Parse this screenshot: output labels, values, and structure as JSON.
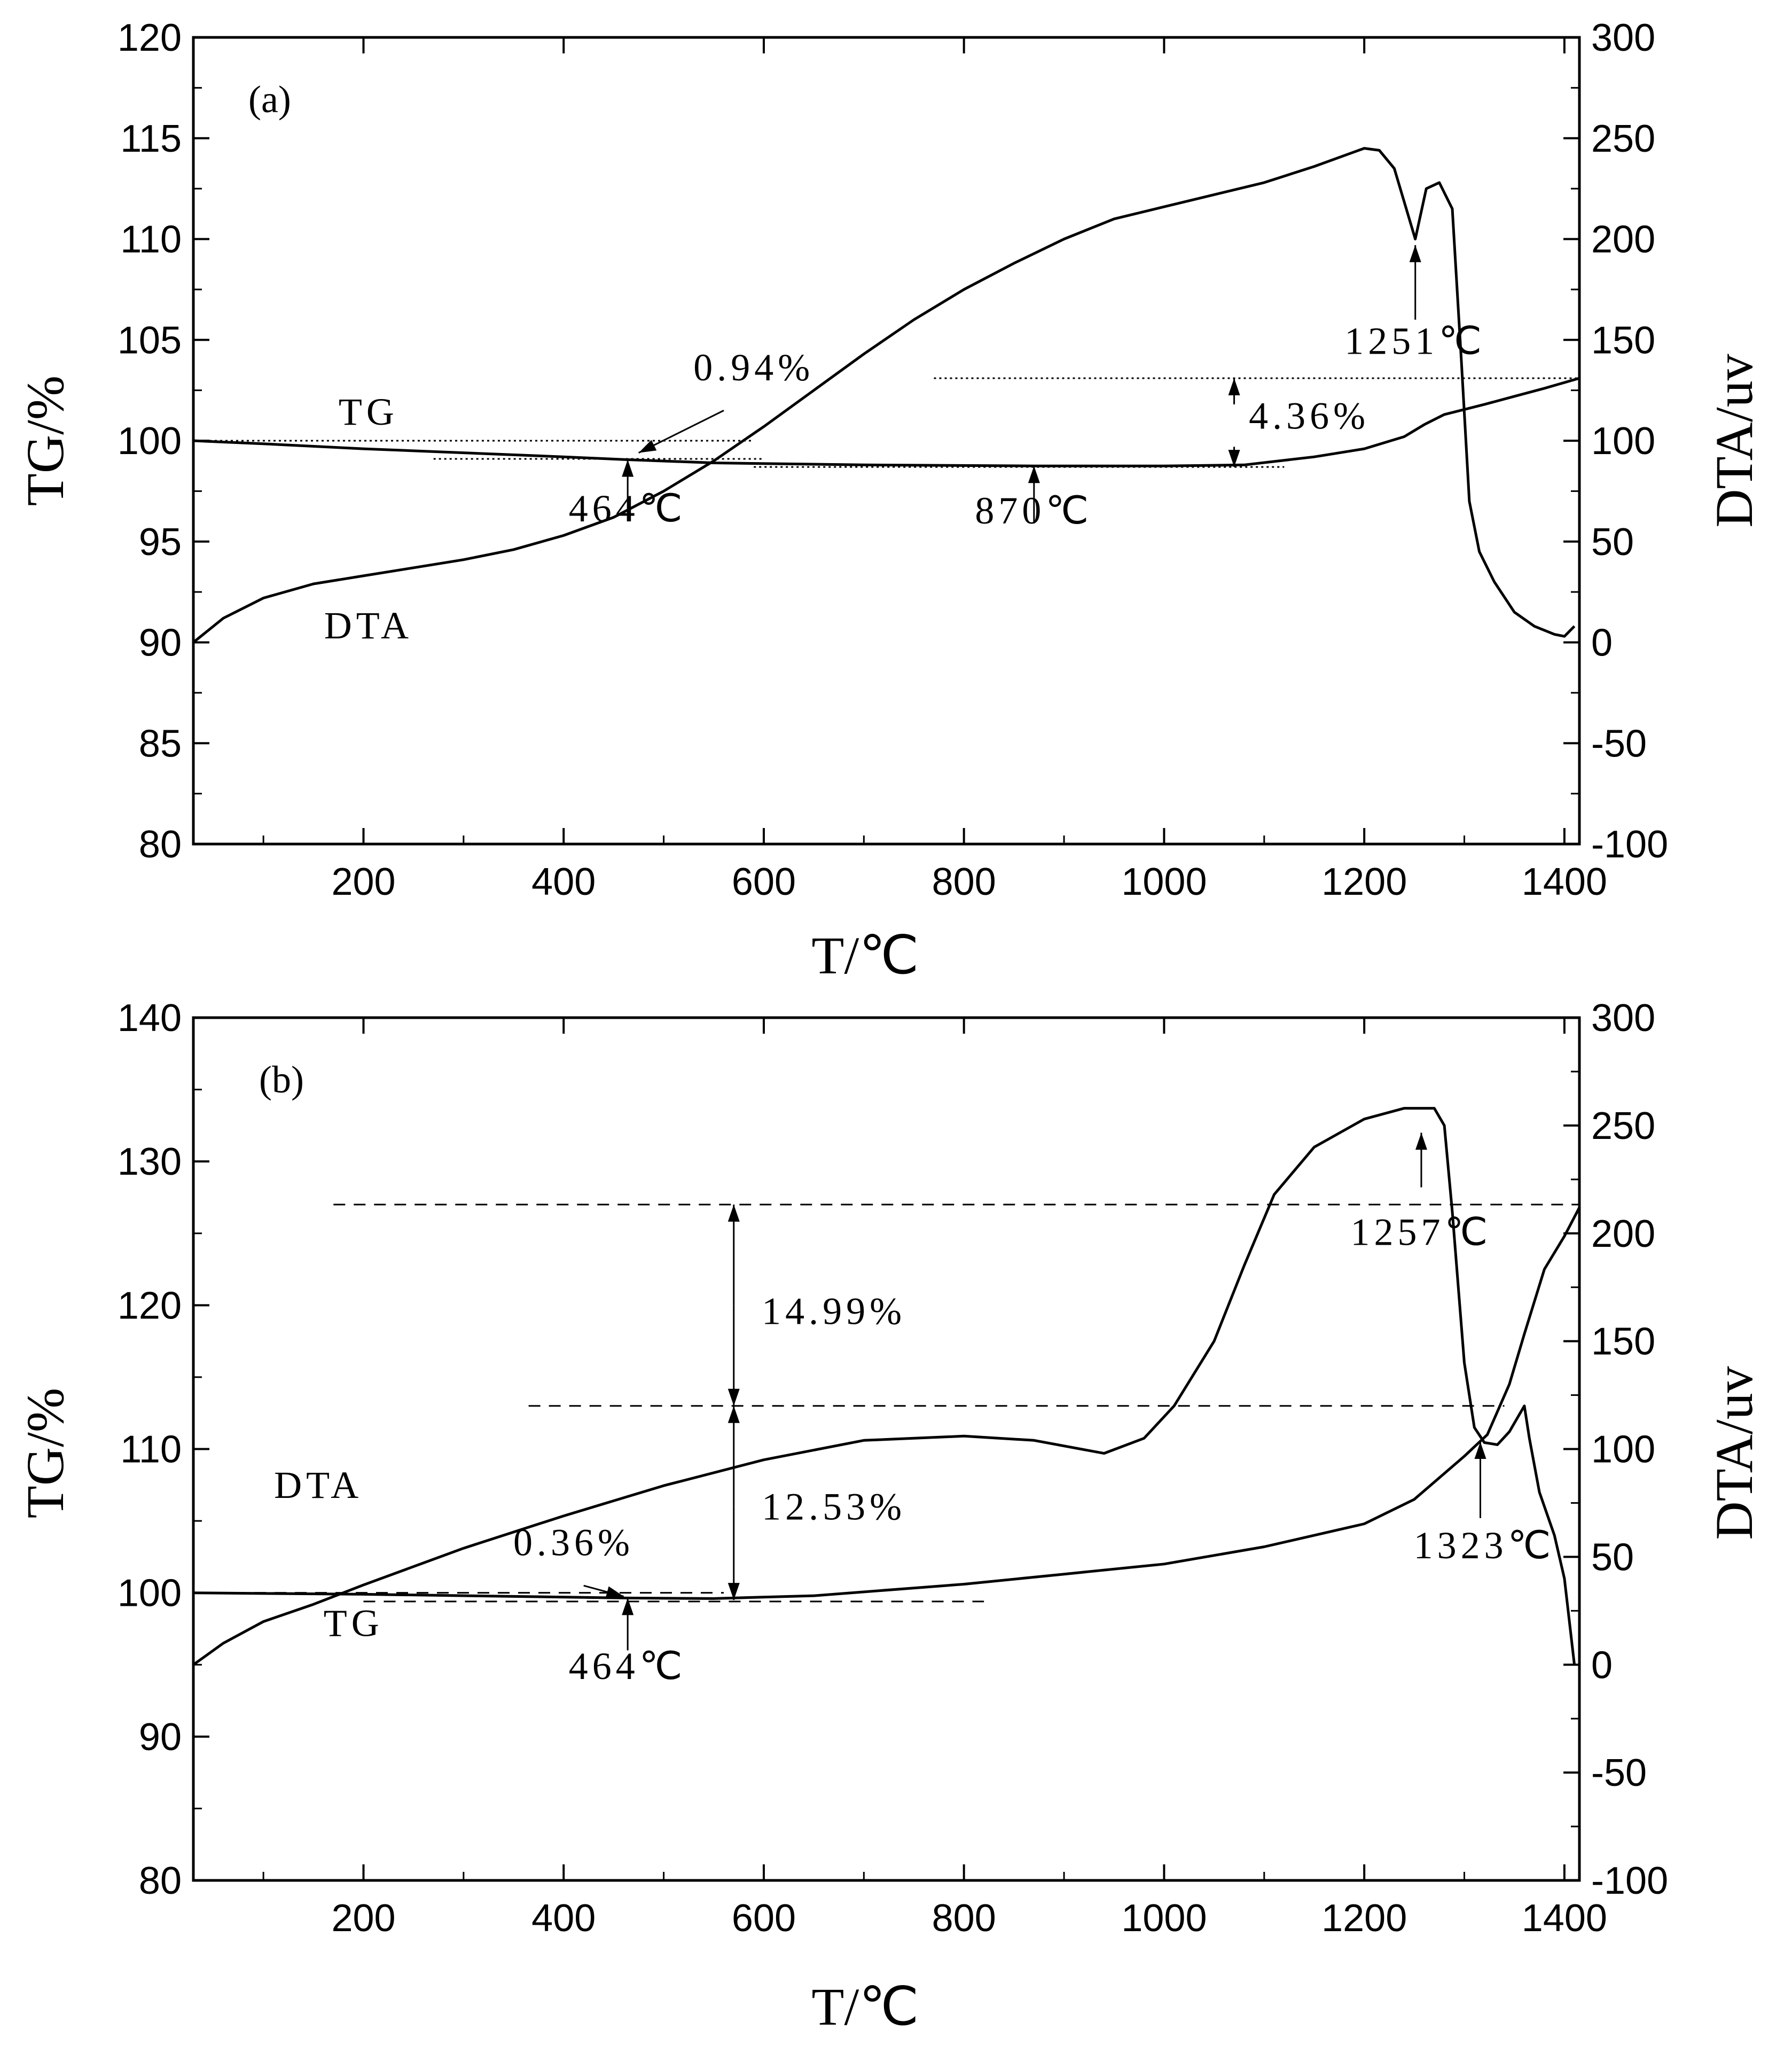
{
  "chart_data": [
    {
      "id": "a",
      "type": "line",
      "panel_label": "(a)",
      "xlabel": "T/℃",
      "ylabel_left": "TG/%",
      "ylabel_right": "DTA/uv",
      "xlim": [
        30,
        1415
      ],
      "xticks": [
        200,
        400,
        600,
        800,
        1000,
        1200,
        1400
      ],
      "ylim_left": [
        80,
        120
      ],
      "yticks_left": [
        80,
        85,
        90,
        95,
        100,
        105,
        110,
        115,
        120
      ],
      "ylim_right": [
        -100,
        300
      ],
      "yticks_right": [
        -100,
        -50,
        0,
        50,
        100,
        150,
        200,
        250,
        300
      ],
      "series": [
        {
          "name": "TG",
          "axis": "left",
          "x": [
            30,
            100,
            200,
            300,
            400,
            464,
            550,
            700,
            870,
            1000,
            1080,
            1150,
            1200,
            1240,
            1260,
            1280,
            1320,
            1350,
            1380,
            1415
          ],
          "y": [
            100.0,
            99.85,
            99.6,
            99.4,
            99.2,
            99.06,
            98.9,
            98.8,
            98.75,
            98.75,
            98.8,
            99.2,
            99.6,
            100.2,
            100.8,
            101.3,
            101.8,
            102.2,
            102.6,
            103.1
          ]
        },
        {
          "name": "DTA",
          "axis": "right",
          "x": [
            30,
            60,
            100,
            150,
            200,
            250,
            300,
            350,
            400,
            450,
            500,
            550,
            600,
            650,
            700,
            750,
            800,
            850,
            900,
            950,
            1000,
            1050,
            1100,
            1150,
            1200,
            1215,
            1230,
            1251,
            1262,
            1275,
            1288,
            1297,
            1305,
            1315,
            1330,
            1350,
            1370,
            1390,
            1400,
            1410
          ],
          "y": [
            0,
            12,
            22,
            29,
            33,
            37,
            41,
            46,
            53,
            62,
            75,
            90,
            107,
            125,
            143,
            160,
            175,
            188,
            200,
            210,
            216,
            222,
            228,
            236,
            245,
            244,
            235,
            200,
            225,
            228,
            215,
            140,
            70,
            45,
            30,
            15,
            8,
            4,
            3,
            8
          ]
        }
      ],
      "annotations": [
        {
          "text": "TG",
          "x": 205,
          "y": 100.8
        },
        {
          "text": "DTA",
          "x": 205,
          "y": 90.2
        },
        {
          "text": "0.94%",
          "x": 590,
          "y": 103.0
        },
        {
          "text": "464℃",
          "x": 464,
          "y": 96.0
        },
        {
          "text": "870℃",
          "x": 870,
          "y": 95.9
        },
        {
          "text": "4.36%",
          "x": 1145,
          "y": 100.6
        },
        {
          "text": "1251℃",
          "x": 1251,
          "y": 104.3
        }
      ],
      "arrows": [
        {
          "from": [
            464,
            96.0
          ],
          "to": [
            464,
            99.06
          ]
        },
        {
          "from": [
            870,
            95.9
          ],
          "to": [
            870,
            98.75
          ]
        },
        {
          "from": [
            1251,
            106.0
          ],
          "to": [
            1251,
            109.7
          ]
        },
        {
          "from": [
            560,
            101.5
          ],
          "to": [
            475,
            99.4
          ]
        },
        {
          "from": [
            1070,
            101.8
          ],
          "to": [
            1070,
            103.1
          ],
          "head": "end"
        },
        {
          "from": [
            1070,
            99.7
          ],
          "to": [
            1070,
            98.7
          ],
          "head": "end"
        }
      ],
      "ref_lines": [
        {
          "x": [
            30,
            590
          ],
          "y": 100.0
        },
        {
          "x": [
            270,
            600
          ],
          "y": 99.1
        },
        {
          "x": [
            590,
            1120
          ],
          "y": 98.7
        },
        {
          "x": [
            770,
            1415
          ],
          "y": 103.1
        }
      ]
    },
    {
      "id": "b",
      "type": "line",
      "panel_label": "(b)",
      "xlabel": "T/℃",
      "ylabel_left": "TG/%",
      "ylabel_right": "DTA/uv",
      "xlim": [
        30,
        1415
      ],
      "xticks": [
        200,
        400,
        600,
        800,
        1000,
        1200,
        1400
      ],
      "ylim_left": [
        80,
        140
      ],
      "yticks_left": [
        80,
        90,
        100,
        110,
        120,
        130,
        140
      ],
      "ylim_right": [
        -100,
        300
      ],
      "yticks_right": [
        -100,
        -50,
        0,
        50,
        100,
        150,
        200,
        250,
        300
      ],
      "series": [
        {
          "name": "TG",
          "axis": "left",
          "x": [
            30,
            200,
            350,
            464,
            550,
            650,
            800,
            900,
            1000,
            1100,
            1200,
            1250,
            1300,
            1323,
            1345,
            1360,
            1380,
            1400,
            1415
          ],
          "y": [
            100.0,
            99.9,
            99.75,
            99.64,
            99.6,
            99.8,
            100.6,
            101.3,
            102.0,
            103.2,
            104.8,
            106.5,
            109.5,
            111.0,
            114.5,
            118.0,
            122.5,
            124.8,
            126.8
          ]
        },
        {
          "name": "DTA",
          "axis": "right",
          "x": [
            30,
            60,
            100,
            150,
            200,
            300,
            400,
            500,
            600,
            700,
            800,
            870,
            940,
            980,
            1010,
            1050,
            1080,
            1110,
            1150,
            1200,
            1240,
            1270,
            1280,
            1288,
            1300,
            1310,
            1320,
            1333,
            1345,
            1360,
            1365,
            1375,
            1390,
            1400,
            1410
          ],
          "y": [
            0,
            10,
            20,
            28,
            37,
            54,
            69,
            83,
            95,
            104,
            106,
            104,
            98,
            105,
            120,
            150,
            185,
            218,
            240,
            253,
            258,
            258,
            250,
            210,
            140,
            110,
            103,
            102,
            108,
            120,
            105,
            80,
            60,
            40,
            0
          ]
        }
      ],
      "annotations": [
        {
          "text": "DTA",
          "x": 155,
          "y": 106.6
        },
        {
          "text": "TG",
          "x": 190,
          "y": 97.0
        },
        {
          "text": "0.36%",
          "x": 410,
          "y": 102.6
        },
        {
          "text": "464℃",
          "x": 464,
          "y": 94.0
        },
        {
          "text": "14.99%",
          "x": 670,
          "y": 118.7
        },
        {
          "text": "12.53%",
          "x": 670,
          "y": 105.1
        },
        {
          "text": "1257℃",
          "x": 1257,
          "y": 124.2
        },
        {
          "text": "1323℃",
          "x": 1320,
          "y": 102.4
        }
      ],
      "arrows": [
        {
          "from": [
            464,
            96.0
          ],
          "to": [
            464,
            99.64
          ]
        },
        {
          "from": [
            420,
            100.5
          ],
          "to": [
            460,
            99.75
          ]
        },
        {
          "from": [
            1257,
            128.2
          ],
          "to": [
            1257,
            132.0
          ]
        },
        {
          "from": [
            1316,
            105.2
          ],
          "to": [
            1316,
            110.5
          ]
        },
        {
          "from": [
            570,
            120.0
          ],
          "to": [
            570,
            127.0
          ],
          "head": "end"
        },
        {
          "from": [
            570,
            120.0
          ],
          "to": [
            570,
            113.0
          ],
          "head": "end"
        },
        {
          "from": [
            570,
            106.0
          ],
          "to": [
            570,
            113.0
          ],
          "head": "end"
        },
        {
          "from": [
            570,
            106.0
          ],
          "to": [
            570,
            99.5
          ],
          "head": "end"
        }
      ],
      "ref_lines": [
        {
          "x": [
            30,
            560
          ],
          "y": 100.0
        },
        {
          "x": [
            200,
            820
          ],
          "y": 99.4
        },
        {
          "x": [
            365,
            1340
          ],
          "y": 113.0
        },
        {
          "x": [
            170,
            1415
          ],
          "y": 127.0
        }
      ]
    }
  ]
}
